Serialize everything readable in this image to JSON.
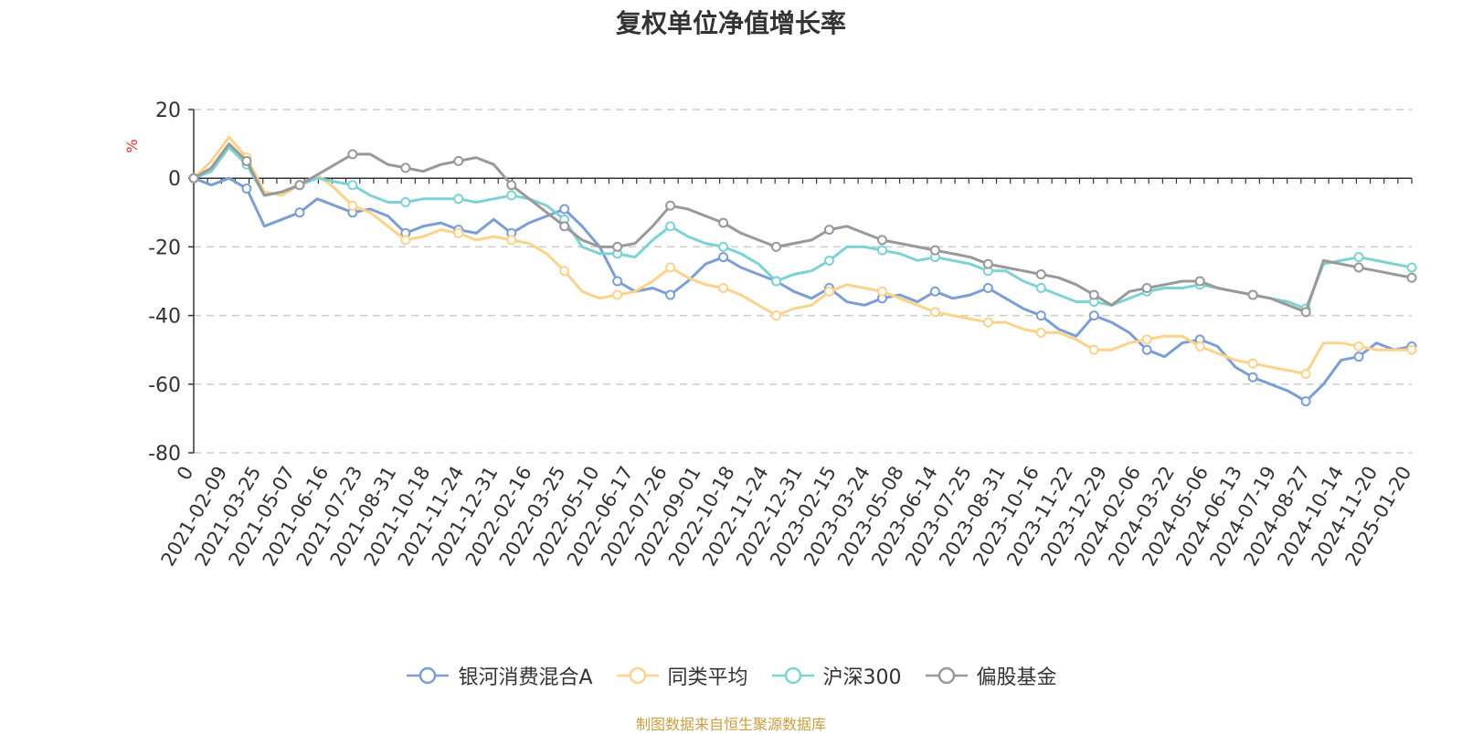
{
  "chart_data": {
    "type": "line",
    "title": "复权单位净值增长率",
    "ylabel": "%",
    "ylim": [
      -80,
      20
    ],
    "yticks": [
      20,
      0,
      -20,
      -40,
      -60,
      -80
    ],
    "grid": true,
    "legend_position": "bottom-center",
    "x_tick_labels": [
      "0",
      "2021-02-09",
      "2021-03-25",
      "2021-05-07",
      "2021-06-16",
      "2021-07-23",
      "2021-08-31",
      "2021-10-18",
      "2021-11-24",
      "2021-12-31",
      "2022-02-16",
      "2022-03-25",
      "2022-05-10",
      "2022-06-17",
      "2022-07-26",
      "2022-09-01",
      "2022-10-18",
      "2022-11-24",
      "2022-12-31",
      "2023-02-15",
      "2023-03-24",
      "2023-05-08",
      "2023-06-14",
      "2023-07-25",
      "2023-08-31",
      "2023-10-16",
      "2023-11-22",
      "2023-12-29",
      "2024-02-06",
      "2024-03-22",
      "2024-05-06",
      "2024-06-13",
      "2024-07-19",
      "2024-08-27",
      "2024-10-14",
      "2024-11-20",
      "2025-01-20"
    ],
    "series": [
      {
        "name": "银河消费混合A",
        "color": "#7b9fd4",
        "values": [
          0,
          -2,
          0,
          -3,
          -14,
          -12,
          -10,
          -6,
          -8,
          -10,
          -9,
          -11,
          -16,
          -14,
          -13,
          -15,
          -16,
          -12,
          -16,
          -13,
          -11,
          -9,
          -14,
          -20,
          -30,
          -33,
          -32,
          -34,
          -30,
          -25,
          -23,
          -26,
          -28,
          -30,
          -33,
          -35,
          -32,
          -36,
          -37,
          -35,
          -34,
          -36,
          -33,
          -35,
          -34,
          -32,
          -35,
          -38,
          -40,
          -44,
          -46,
          -40,
          -42,
          -45,
          -50,
          -52,
          -48,
          -47,
          -49,
          -55,
          -58,
          -60,
          -62,
          -65,
          -60,
          -53,
          -52,
          -48,
          -50,
          -49
        ]
      },
      {
        "name": "同类平均",
        "color": "#fdd28b",
        "values": [
          0,
          5,
          12,
          6,
          -4,
          -5,
          -2,
          1,
          -3,
          -8,
          -10,
          -14,
          -18,
          -17,
          -15,
          -16,
          -18,
          -17,
          -18,
          -19,
          -22,
          -27,
          -33,
          -35,
          -34,
          -33,
          -30,
          -26,
          -29,
          -31,
          -32,
          -34,
          -37,
          -40,
          -38,
          -37,
          -33,
          -31,
          -32,
          -33,
          -35,
          -37,
          -39,
          -40,
          -41,
          -42,
          -42,
          -44,
          -45,
          -45,
          -47,
          -50,
          -50,
          -48,
          -47,
          -46,
          -46,
          -49,
          -51,
          -53,
          -54,
          -55,
          -56,
          -57,
          -48,
          -48,
          -49,
          -50,
          -50,
          -50
        ]
      },
      {
        "name": "沪深300",
        "color": "#7dd3d3",
        "values": [
          0,
          2,
          9,
          4,
          -5,
          -4,
          -2,
          0,
          -1,
          -2,
          -5,
          -7,
          -7,
          -6,
          -6,
          -6,
          -7,
          -6,
          -5,
          -6,
          -8,
          -12,
          -20,
          -22,
          -22,
          -23,
          -18,
          -14,
          -17,
          -19,
          -20,
          -22,
          -25,
          -30,
          -28,
          -27,
          -24,
          -20,
          -20,
          -21,
          -22,
          -24,
          -23,
          -24,
          -25,
          -27,
          -27,
          -30,
          -32,
          -34,
          -36,
          -36,
          -37,
          -35,
          -33,
          -32,
          -32,
          -31,
          -32,
          -33,
          -34,
          -35,
          -36,
          -38,
          -25,
          -24,
          -23,
          -24,
          -25,
          -26
        ]
      },
      {
        "name": "偏股基金",
        "color": "#999999",
        "values": [
          0,
          3,
          10,
          5,
          -5,
          -4,
          -2,
          1,
          4,
          7,
          7,
          4,
          3,
          2,
          4,
          5,
          6,
          4,
          -2,
          -6,
          -10,
          -14,
          -18,
          -20,
          -20,
          -19,
          -14,
          -8,
          -9,
          -11,
          -13,
          -16,
          -18,
          -20,
          -19,
          -18,
          -15,
          -14,
          -16,
          -18,
          -19,
          -20,
          -21,
          -22,
          -23,
          -25,
          -26,
          -27,
          -28,
          -29,
          -31,
          -34,
          -37,
          -33,
          -32,
          -31,
          -30,
          -30,
          -32,
          -33,
          -34,
          -35,
          -37,
          -39,
          -24,
          -25,
          -26,
          -27,
          -28,
          -29
        ]
      }
    ]
  },
  "source_note": "制图数据来自恒生聚源数据库"
}
